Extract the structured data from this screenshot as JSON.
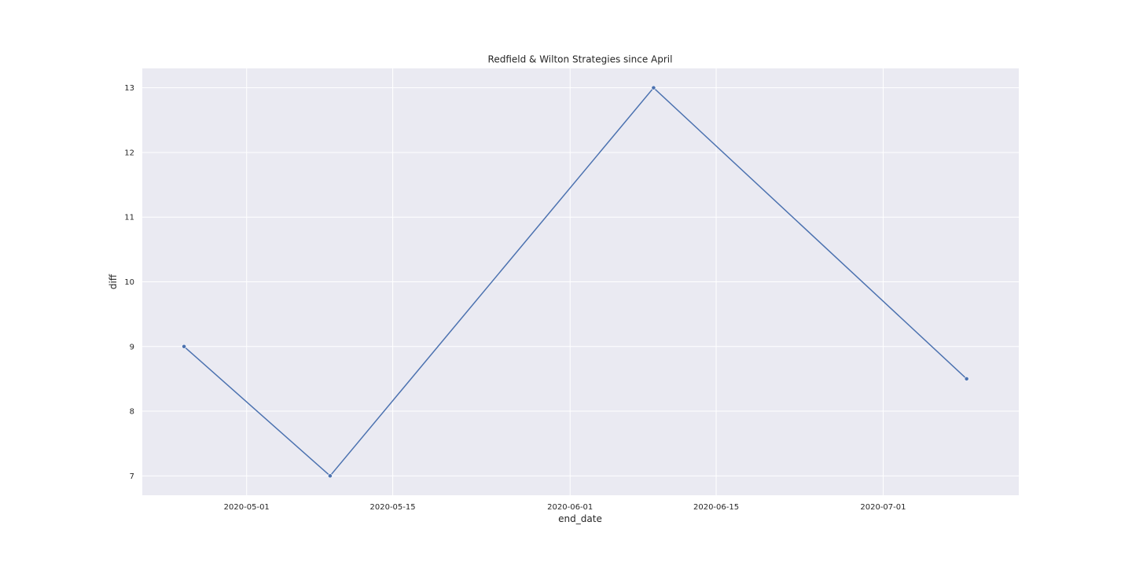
{
  "chart_data": {
    "type": "line",
    "title": "Redfield & Wilton Strategies since April",
    "xlabel": "end_date",
    "ylabel": "diff",
    "x_scale": "date",
    "xlim": [
      "2020-04-21",
      "2020-07-14"
    ],
    "ylim": [
      6.7,
      13.3
    ],
    "x_ticks": [
      "2020-05-01",
      "2020-05-15",
      "2020-06-01",
      "2020-06-15",
      "2020-07-01"
    ],
    "y_ticks": [
      7,
      8,
      9,
      10,
      11,
      12,
      13
    ],
    "grid": true,
    "series": [
      {
        "color": "#4c72b0",
        "marker": "circle",
        "points": [
          {
            "x": "2020-04-25",
            "y": 9.0
          },
          {
            "x": "2020-05-09",
            "y": 7.0
          },
          {
            "x": "2020-06-09",
            "y": 13.0
          },
          {
            "x": "2020-07-09",
            "y": 8.5
          }
        ]
      }
    ]
  }
}
